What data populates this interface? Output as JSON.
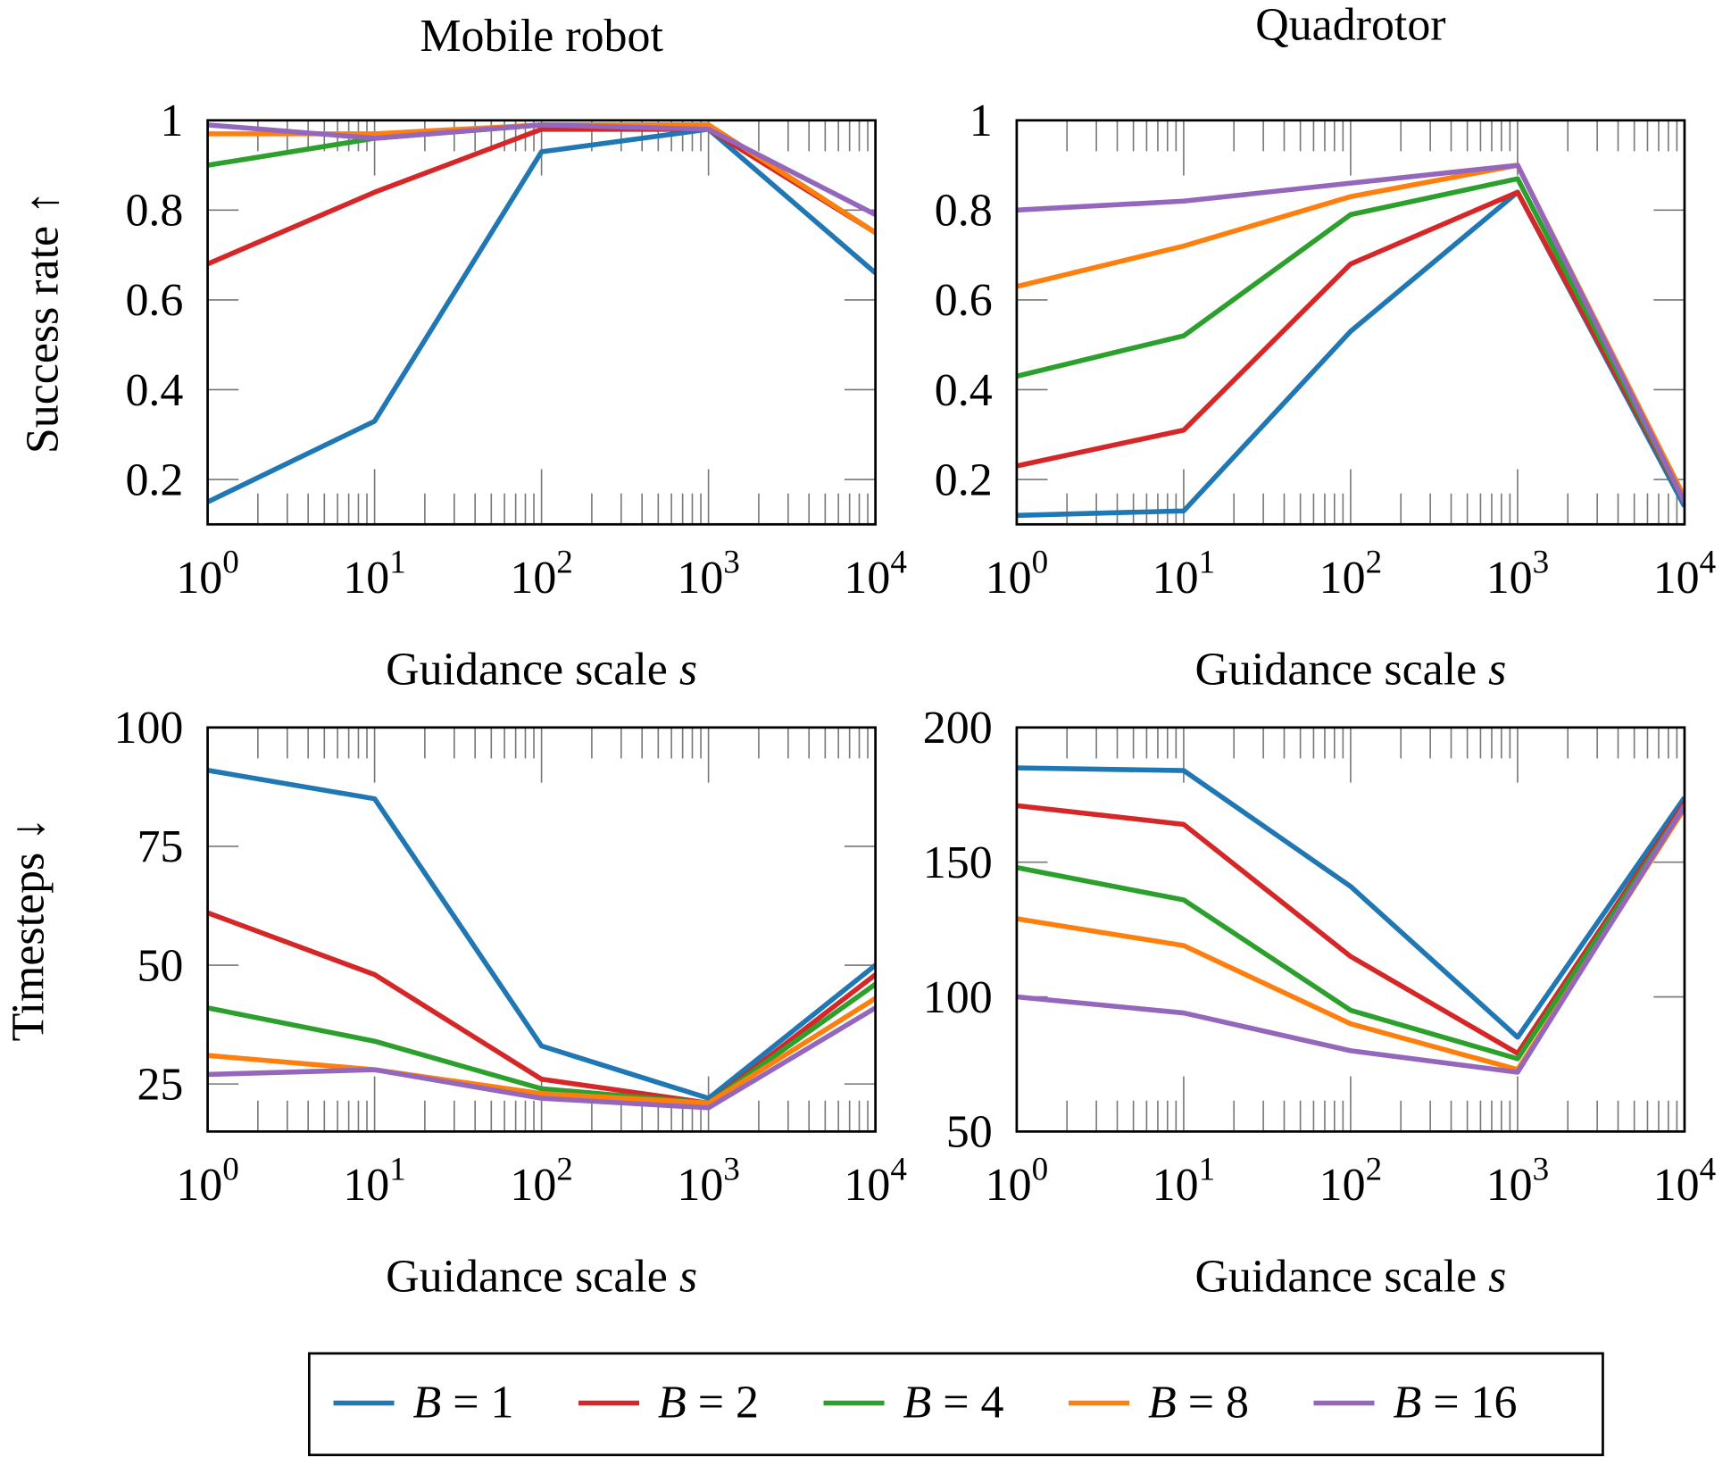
{
  "colors": {
    "B=1": "#1f77b4",
    "B=2": "#d62728",
    "B=4": "#2ca02c",
    "B=8": "#ff7f0e",
    "B=16": "#9467bd"
  },
  "legend": {
    "placement": "bottom-center",
    "entries": [
      {
        "label": "B = 1",
        "color": "#1f77b4"
      },
      {
        "label": "B = 2",
        "color": "#d62728"
      },
      {
        "label": "B = 4",
        "color": "#2ca02c"
      },
      {
        "label": "B = 8",
        "color": "#ff7f0e"
      },
      {
        "label": "B = 16",
        "color": "#9467bd"
      }
    ]
  },
  "chart_data": [
    {
      "type": "line",
      "title": "Mobile robot",
      "xlabel": "Guidance scale s",
      "ylabel": "Success rate ↑",
      "x": [
        1,
        10,
        100,
        1000,
        10000
      ],
      "xscale": "log",
      "xlim": [
        1,
        10000
      ],
      "ylim": [
        0.1,
        1
      ],
      "x_ticks": [
        {
          "base": "10",
          "exp": "0"
        },
        {
          "base": "10",
          "exp": "1"
        },
        {
          "base": "10",
          "exp": "2"
        },
        {
          "base": "10",
          "exp": "3"
        },
        {
          "base": "10",
          "exp": "4"
        }
      ],
      "y_ticks": [
        {
          "v": 0.2,
          "label": "0.2"
        },
        {
          "v": 0.4,
          "label": "0.4"
        },
        {
          "v": 0.6,
          "label": "0.6"
        },
        {
          "v": 0.8,
          "label": "0.8"
        },
        {
          "v": 1,
          "label": "1"
        }
      ],
      "grid": false,
      "series": [
        {
          "name": "B = 1",
          "values": [
            0.15,
            0.33,
            0.93,
            0.98,
            0.66
          ]
        },
        {
          "name": "B = 2",
          "values": [
            0.68,
            0.84,
            0.98,
            0.98,
            0.75
          ]
        },
        {
          "name": "B = 4",
          "values": [
            0.9,
            0.96,
            0.99,
            0.99,
            0.75
          ]
        },
        {
          "name": "B = 8",
          "values": [
            0.97,
            0.97,
            0.99,
            0.99,
            0.75
          ]
        },
        {
          "name": "B = 16",
          "values": [
            0.99,
            0.96,
            0.99,
            0.98,
            0.79
          ]
        }
      ]
    },
    {
      "type": "line",
      "title": "Quadrotor",
      "xlabel": "Guidance scale s",
      "ylabel": "",
      "x": [
        1,
        10,
        100,
        1000,
        10000
      ],
      "xscale": "log",
      "xlim": [
        1,
        10000
      ],
      "ylim": [
        0.1,
        1
      ],
      "x_ticks": [
        {
          "base": "10",
          "exp": "0"
        },
        {
          "base": "10",
          "exp": "1"
        },
        {
          "base": "10",
          "exp": "2"
        },
        {
          "base": "10",
          "exp": "3"
        },
        {
          "base": "10",
          "exp": "4"
        }
      ],
      "y_ticks": [
        {
          "v": 0.2,
          "label": "0.2"
        },
        {
          "v": 0.4,
          "label": "0.4"
        },
        {
          "v": 0.6,
          "label": "0.6"
        },
        {
          "v": 0.8,
          "label": "0.8"
        },
        {
          "v": 1,
          "label": "1"
        }
      ],
      "grid": false,
      "series": [
        {
          "name": "B = 1",
          "values": [
            0.12,
            0.13,
            0.53,
            0.84,
            0.14
          ]
        },
        {
          "name": "B = 2",
          "values": [
            0.23,
            0.31,
            0.68,
            0.84,
            0.15
          ]
        },
        {
          "name": "B = 4",
          "values": [
            0.43,
            0.52,
            0.79,
            0.87,
            0.15
          ]
        },
        {
          "name": "B = 8",
          "values": [
            0.63,
            0.72,
            0.83,
            0.9,
            0.16
          ]
        },
        {
          "name": "B = 16",
          "values": [
            0.8,
            0.82,
            0.86,
            0.9,
            0.15
          ]
        }
      ]
    },
    {
      "type": "line",
      "title": "",
      "xlabel": "Guidance scale s",
      "ylabel": "Timesteps ↓",
      "x": [
        1,
        10,
        100,
        1000,
        10000
      ],
      "xscale": "log",
      "xlim": [
        1,
        10000
      ],
      "ylim": [
        15,
        100
      ],
      "x_ticks": [
        {
          "base": "10",
          "exp": "0"
        },
        {
          "base": "10",
          "exp": "1"
        },
        {
          "base": "10",
          "exp": "2"
        },
        {
          "base": "10",
          "exp": "3"
        },
        {
          "base": "10",
          "exp": "4"
        }
      ],
      "y_ticks": [
        {
          "v": 25,
          "label": "25"
        },
        {
          "v": 50,
          "label": "50"
        },
        {
          "v": 75,
          "label": "75"
        },
        {
          "v": 100,
          "label": "100"
        }
      ],
      "grid": false,
      "series": [
        {
          "name": "B = 1",
          "values": [
            91,
            85,
            33,
            22,
            50
          ]
        },
        {
          "name": "B = 2",
          "values": [
            61,
            48,
            26,
            21,
            48
          ]
        },
        {
          "name": "B = 4",
          "values": [
            41,
            34,
            24,
            21,
            46
          ]
        },
        {
          "name": "B = 8",
          "values": [
            31,
            28,
            23,
            21,
            43
          ]
        },
        {
          "name": "B = 16",
          "values": [
            27,
            28,
            22,
            20,
            41
          ]
        }
      ]
    },
    {
      "type": "line",
      "title": "",
      "xlabel": "Guidance scale s",
      "ylabel": "",
      "x": [
        1,
        10,
        100,
        1000,
        10000
      ],
      "xscale": "log",
      "xlim": [
        1,
        10000
      ],
      "ylim": [
        50,
        200
      ],
      "x_ticks": [
        {
          "base": "10",
          "exp": "0"
        },
        {
          "base": "10",
          "exp": "1"
        },
        {
          "base": "10",
          "exp": "2"
        },
        {
          "base": "10",
          "exp": "3"
        },
        {
          "base": "10",
          "exp": "4"
        }
      ],
      "y_ticks": [
        {
          "v": 50,
          "label": "50"
        },
        {
          "v": 100,
          "label": "100"
        },
        {
          "v": 150,
          "label": "150"
        },
        {
          "v": 200,
          "label": "200"
        }
      ],
      "grid": false,
      "series": [
        {
          "name": "B = 1",
          "values": [
            185,
            184,
            141,
            85,
            174
          ]
        },
        {
          "name": "B = 2",
          "values": [
            171,
            164,
            115,
            79,
            172
          ]
        },
        {
          "name": "B = 4",
          "values": [
            148,
            136,
            95,
            77,
            171
          ]
        },
        {
          "name": "B = 8",
          "values": [
            129,
            119,
            90,
            73,
            170
          ]
        },
        {
          "name": "B = 16",
          "values": [
            100,
            94,
            80,
            72,
            171
          ]
        }
      ]
    }
  ]
}
